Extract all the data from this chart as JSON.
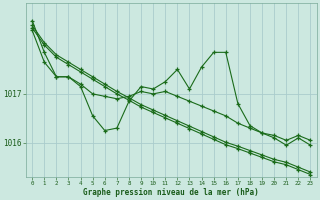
{
  "xlabel": "Graphe pression niveau de la mer (hPa)",
  "background_color": "#cce8e0",
  "plot_bg_color": "#cce8e0",
  "grid_color": "#b0d8d0",
  "line_color": "#1a6b1a",
  "hours": [
    0,
    1,
    2,
    3,
    4,
    5,
    6,
    7,
    8,
    9,
    10,
    11,
    12,
    13,
    14,
    15,
    16,
    17,
    18,
    19,
    20,
    21,
    22,
    23
  ],
  "series_volatile": [
    1018.5,
    1017.85,
    1017.35,
    1017.35,
    1017.15,
    1016.55,
    1016.25,
    1016.3,
    1016.85,
    1017.15,
    1017.1,
    1017.25,
    1017.5,
    1017.1,
    1017.55,
    1017.85,
    1017.85,
    1016.8,
    1016.35,
    1016.2,
    1016.1,
    1015.95,
    1016.1,
    1015.95
  ],
  "series_mid": [
    1018.3,
    1017.65,
    1017.35,
    1017.35,
    1017.2,
    1017.0,
    1016.95,
    1016.9,
    1016.95,
    1017.05,
    1017.0,
    1017.05,
    1016.95,
    1016.85,
    1016.75,
    1016.65,
    1016.55,
    1016.4,
    1016.3,
    1016.2,
    1016.15,
    1016.05,
    1016.15,
    1016.05
  ],
  "series_linear1": [
    1018.4,
    1018.05,
    1017.8,
    1017.65,
    1017.5,
    1017.35,
    1017.2,
    1017.05,
    1016.92,
    1016.78,
    1016.67,
    1016.56,
    1016.45,
    1016.34,
    1016.23,
    1016.12,
    1016.01,
    1015.93,
    1015.84,
    1015.75,
    1015.66,
    1015.6,
    1015.5,
    1015.4
  ],
  "series_linear2": [
    1018.35,
    1018.0,
    1017.75,
    1017.6,
    1017.45,
    1017.3,
    1017.15,
    1017.0,
    1016.87,
    1016.73,
    1016.62,
    1016.51,
    1016.4,
    1016.29,
    1016.18,
    1016.07,
    1015.96,
    1015.88,
    1015.79,
    1015.7,
    1015.61,
    1015.55,
    1015.45,
    1015.35
  ],
  "ylim_min": 1015.3,
  "ylim_max": 1018.85,
  "yticks": [
    1016,
    1017
  ],
  "marker_size": 3.0,
  "line_width": 0.8
}
